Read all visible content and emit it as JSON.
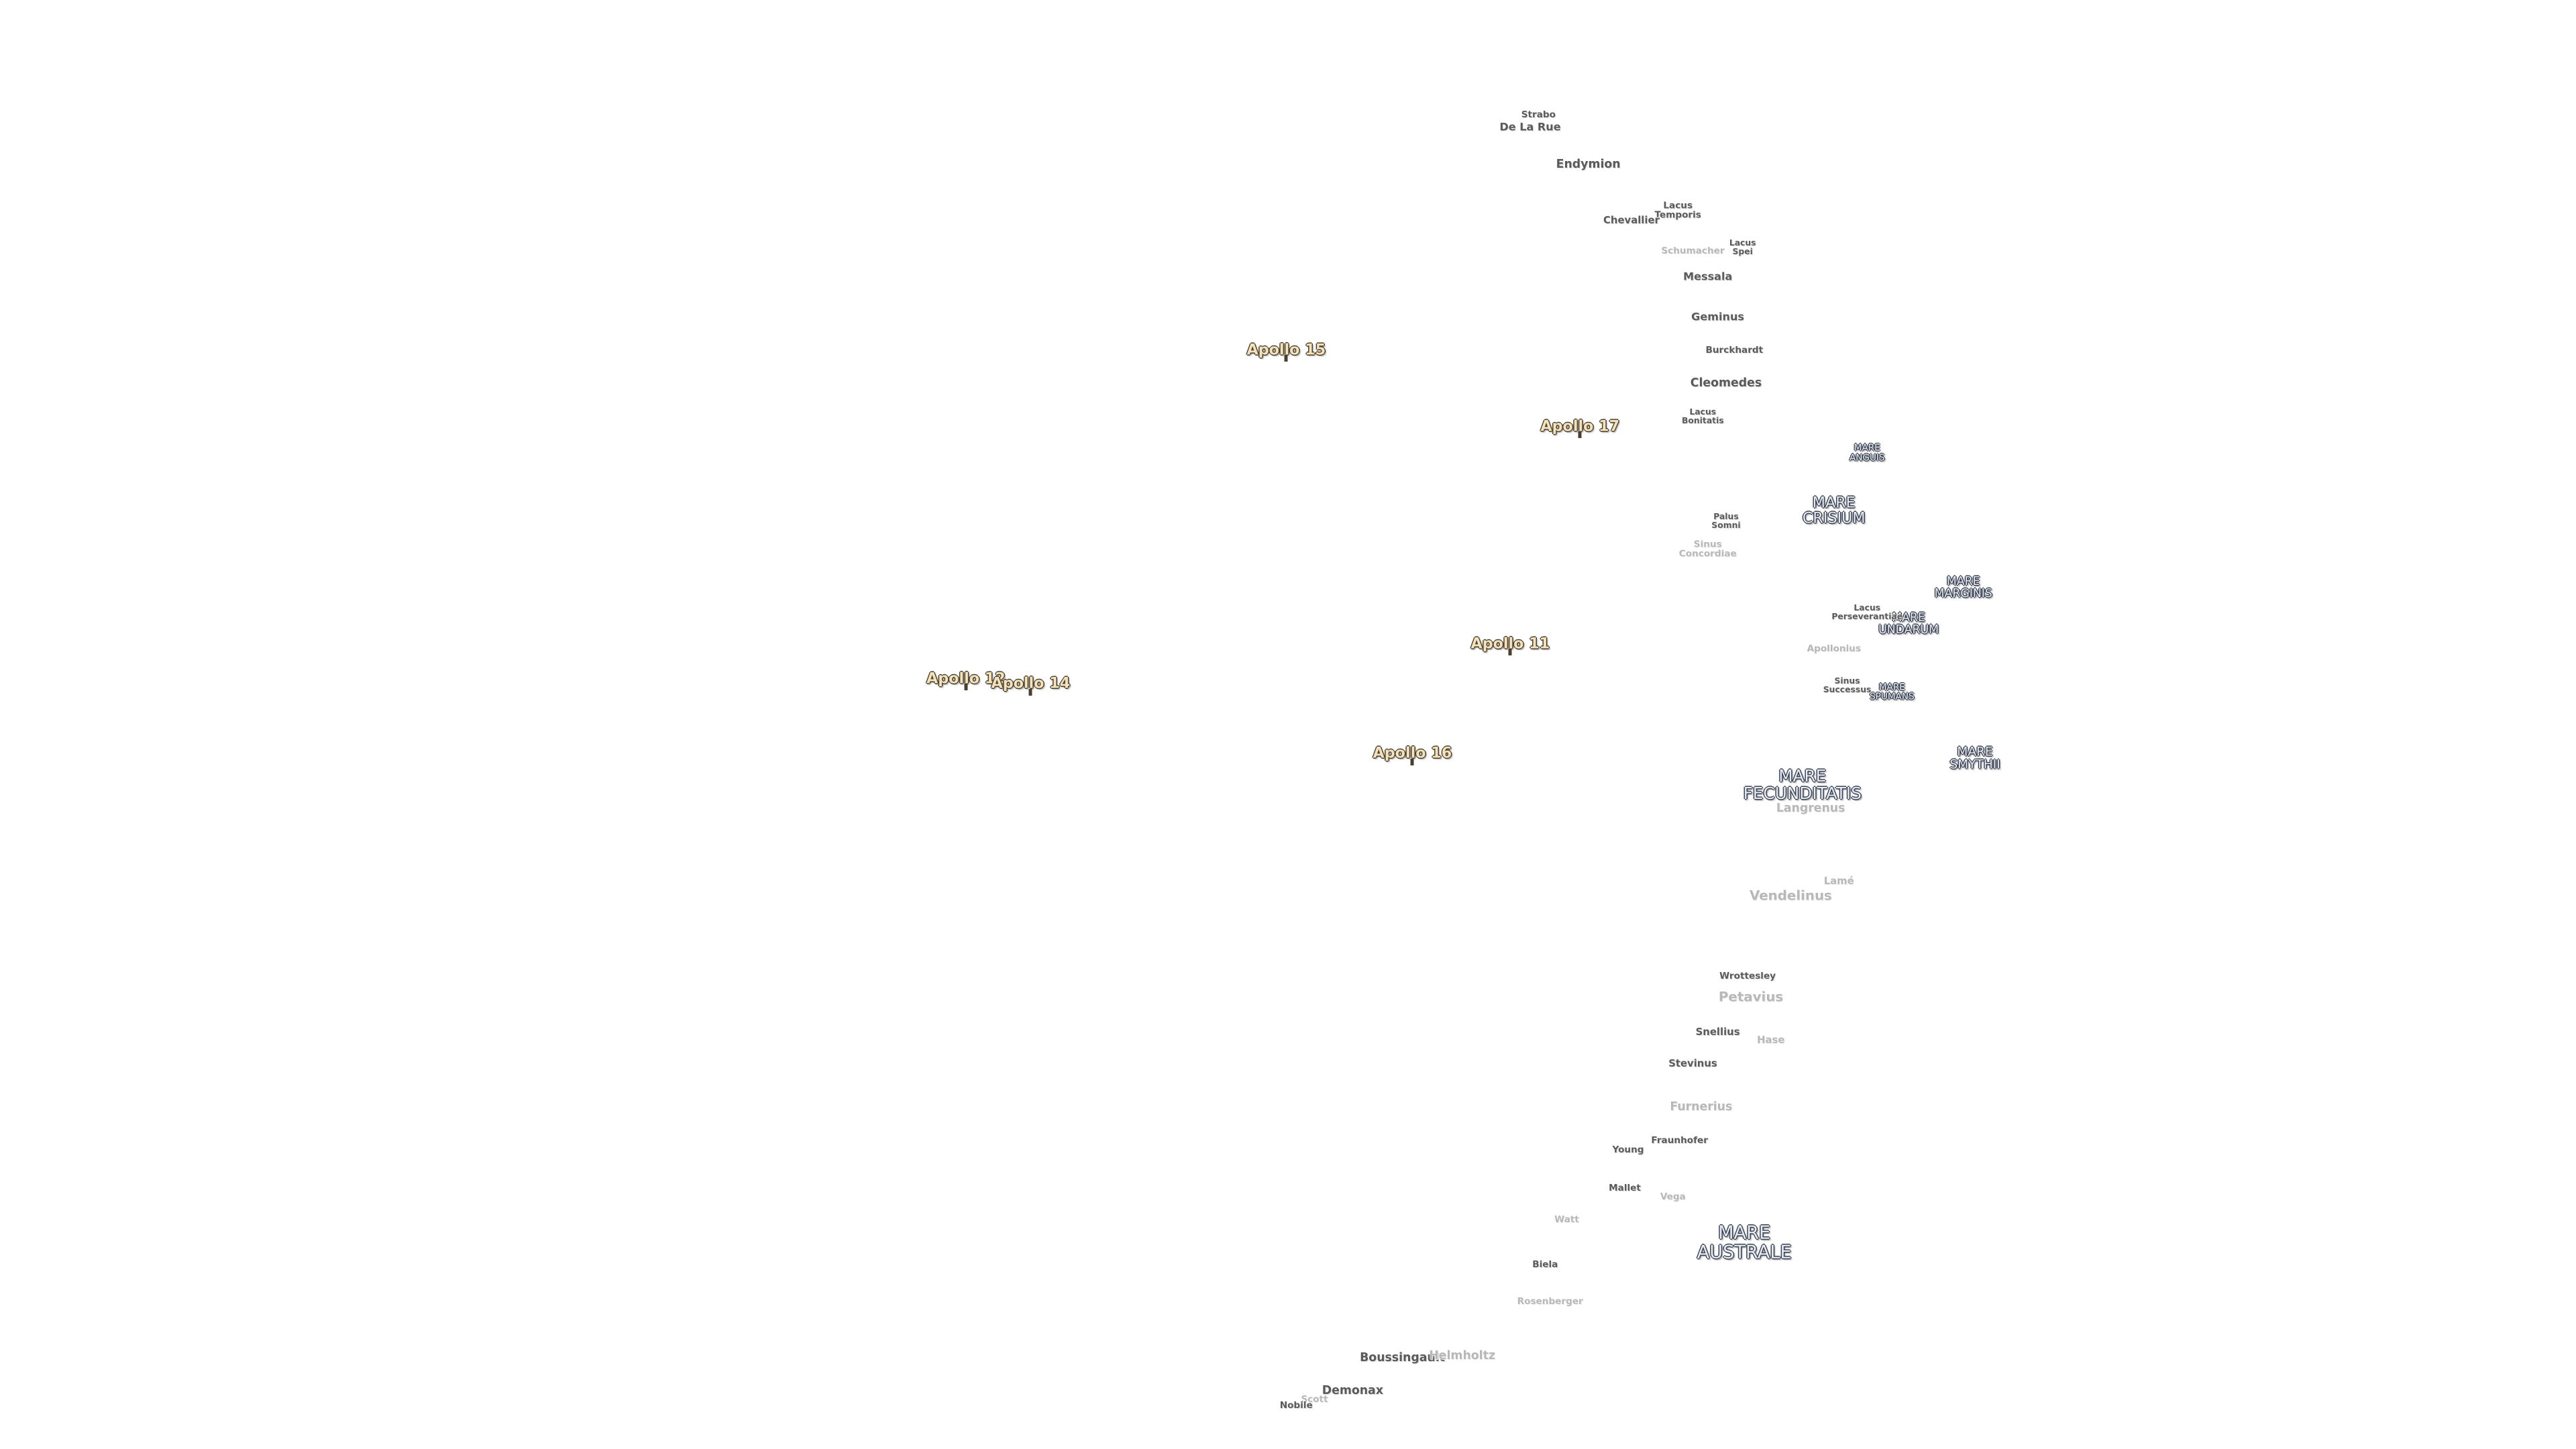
{
  "apollo_sites": [
    [
      "Apollo 15"
    ],
    [
      "Apollo 17"
    ],
    [
      "Apollo 11"
    ],
    [
      "Apollo 12"
    ],
    [
      "Apollo 14"
    ],
    [
      "Apollo 16"
    ]
  ],
  "maria": [
    [
      "MARE",
      "ANGUIS"
    ],
    [
      "MARE",
      "CRISIUM"
    ],
    [
      "MARE",
      "MARGINIS"
    ],
    [
      "MARE",
      "UNDARUM"
    ],
    [
      "MARE",
      "SPUMANS"
    ],
    [
      "MARE",
      "SMYTHII"
    ],
    [
      "MARE",
      "FECUNDITATIS"
    ],
    [
      "MARE",
      "AUSTRALE"
    ]
  ],
  "features": [
    [
      "Strabo"
    ],
    [
      "De La Rue"
    ],
    [
      "Endymion"
    ],
    [
      "Lacus",
      "Temporis"
    ],
    [
      "Chevallier"
    ],
    [
      "Lacus",
      "Spei"
    ],
    [
      "Schumacher"
    ],
    [
      "Messala"
    ],
    [
      "Geminus"
    ],
    [
      "Burckhardt"
    ],
    [
      "Cleomedes"
    ],
    [
      "Lacus",
      "Bonitatis"
    ],
    [
      "Palus",
      "Somni"
    ],
    [
      "Sinus",
      "Concordiae"
    ],
    [
      "Lacus",
      "Perseverantiae"
    ],
    [
      "Apollonius"
    ],
    [
      "Sinus",
      "Successus"
    ],
    [
      "Langrenus"
    ],
    [
      "Lamé"
    ],
    [
      "Vendelinus"
    ],
    [
      "Wrottesley"
    ],
    [
      "Petavius"
    ],
    [
      "Snellius"
    ],
    [
      "Hase"
    ],
    [
      "Stevinus"
    ],
    [
      "Furnerius"
    ],
    [
      "Fraunhofer"
    ],
    [
      "Young"
    ],
    [
      "Mallet"
    ],
    [
      "Vega"
    ],
    [
      "Watt"
    ],
    [
      "Biela"
    ],
    [
      "Rosenberger"
    ],
    [
      "Boussingault"
    ],
    [
      "Helmholtz"
    ],
    [
      "Demonax"
    ],
    [
      "Scott"
    ],
    [
      "Nobile"
    ]
  ]
}
